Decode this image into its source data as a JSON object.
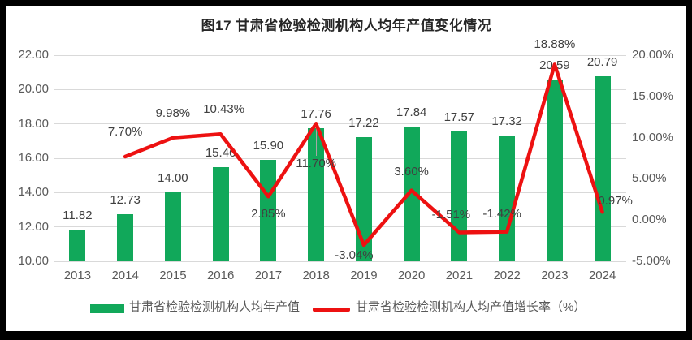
{
  "frame": {
    "border_color": "#000000",
    "panel_color": "#ffffff"
  },
  "colors": {
    "bar": "#11a85a",
    "line": "#ed1111",
    "grid": "#d9d9d9",
    "axis_text": "#595959",
    "data_label": "#404040",
    "title_text": "#262626",
    "leader": "#a6a6a6"
  },
  "chart_data": {
    "type": "bar+line",
    "title": "图17 甘肃省检验检测机构人均年产值变化情况",
    "categories": [
      "2013",
      "2014",
      "2015",
      "2016",
      "2017",
      "2018",
      "2019",
      "2020",
      "2021",
      "2022",
      "2023",
      "2024"
    ],
    "series": [
      {
        "name": "甘肃省检验检测机构人均年产值",
        "type": "bar",
        "color": "#11a85a",
        "values": [
          11.82,
          12.73,
          14.0,
          15.46,
          15.9,
          17.76,
          17.22,
          17.84,
          17.57,
          17.32,
          20.59,
          20.79
        ],
        "labels": [
          "11.82",
          "12.73",
          "14.00",
          "15.46",
          "15.90",
          "17.76",
          "17.22",
          "17.84",
          "17.57",
          "17.32",
          "20.59",
          "20.79"
        ]
      },
      {
        "name": "甘肃省检验检测机构人均产值增长率（%）",
        "type": "line",
        "color": "#ed1111",
        "values": [
          null,
          7.7,
          9.98,
          10.43,
          2.85,
          11.7,
          -3.04,
          3.6,
          -1.51,
          -1.42,
          18.88,
          0.97
        ],
        "labels": [
          null,
          "7.70%",
          "9.98%",
          "10.43%",
          "2.85%",
          "11.70%",
          "-3.04%",
          "3.60%",
          "-1.51%",
          "-1.42%",
          "18.88%",
          "0.97%"
        ]
      }
    ],
    "left_axis": {
      "min": 10,
      "max": 22,
      "ticks": [
        "22.00",
        "20.00",
        "18.00",
        "16.00",
        "14.00",
        "12.00",
        "10.00"
      ]
    },
    "right_axis": {
      "min": -5,
      "max": 20,
      "ticks": [
        "20.00%",
        "15.00%",
        "10.00%",
        "5.00%",
        "0.00%",
        "-5.00%"
      ]
    },
    "grid": true,
    "legend_position": "bottom"
  }
}
